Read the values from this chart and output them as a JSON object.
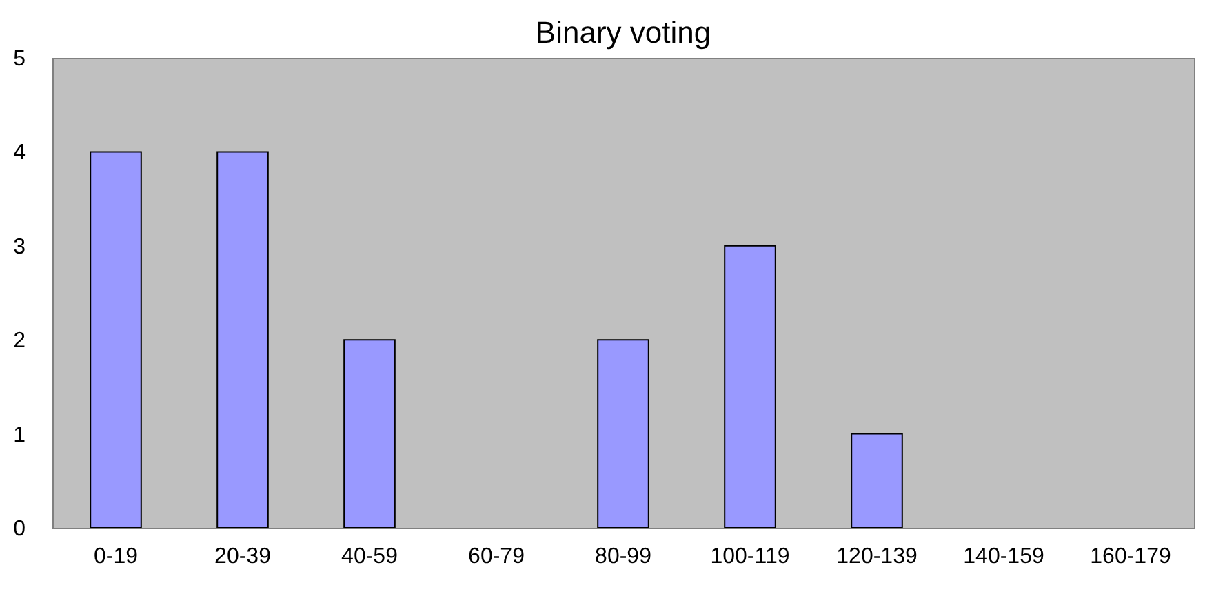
{
  "chart_data": {
    "type": "bar",
    "title": "Binary voting",
    "categories": [
      "0-19",
      "20-39",
      "40-59",
      "60-79",
      "80-99",
      "100-119",
      "120-139",
      "140-159",
      "160-179"
    ],
    "values": [
      4,
      4,
      2,
      0,
      2,
      3,
      1,
      0,
      0
    ],
    "color": "#9999ff",
    "ylim": [
      0,
      5
    ],
    "yticks": [
      0,
      1,
      2,
      3,
      4,
      5
    ]
  }
}
